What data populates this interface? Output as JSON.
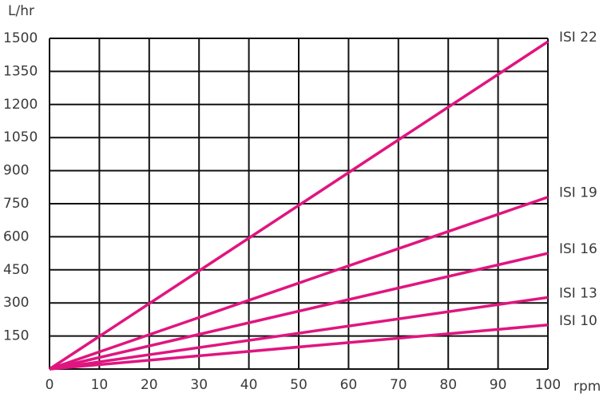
{
  "chart_data": {
    "type": "line",
    "y_label": "L/hr",
    "x_label": "rpm",
    "x": [
      0,
      100
    ],
    "xlim": [
      0,
      100
    ],
    "xticks": [
      0,
      10,
      20,
      30,
      40,
      50,
      60,
      70,
      80,
      90,
      100
    ],
    "ylim": [
      0,
      1500
    ],
    "yticks": [
      150,
      300,
      450,
      600,
      750,
      900,
      1050,
      1200,
      1350,
      1500
    ],
    "grid": true,
    "series": [
      {
        "name": "ISI 22",
        "color": "#e0157f",
        "values": [
          0,
          1485
        ]
      },
      {
        "name": "ISI 19",
        "color": "#e0157f",
        "values": [
          0,
          780
        ]
      },
      {
        "name": "ISI 16",
        "color": "#e0157f",
        "values": [
          0,
          525
        ]
      },
      {
        "name": "ISI 13",
        "color": "#e0157f",
        "values": [
          0,
          325
        ]
      },
      {
        "name": "ISI 10",
        "color": "#e0157f",
        "values": [
          0,
          200
        ]
      }
    ]
  }
}
